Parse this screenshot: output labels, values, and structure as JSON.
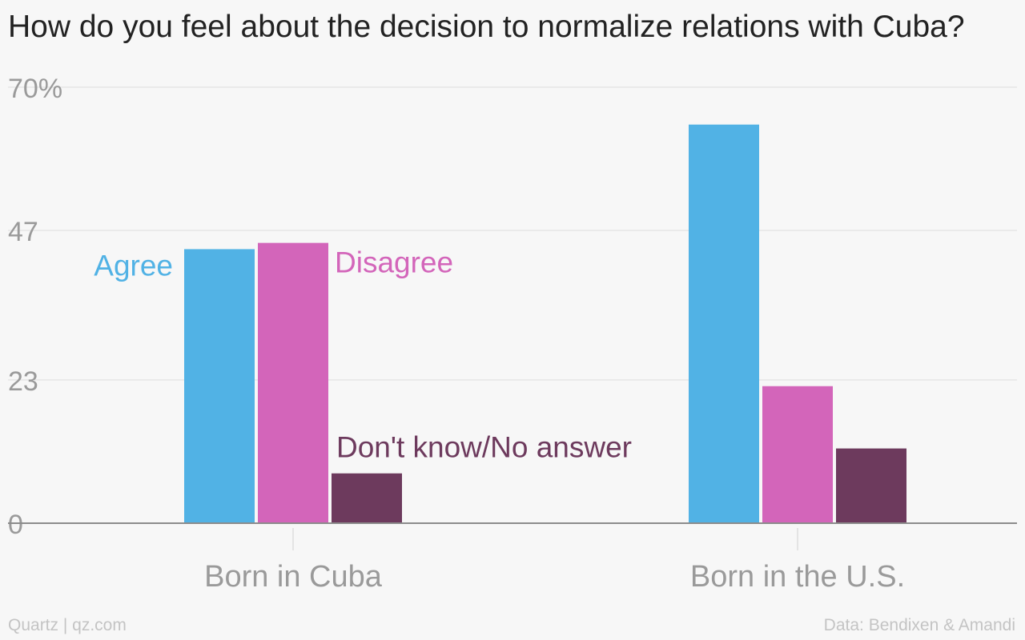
{
  "title": "How do you feel about the decision to normalize relations with Cuba?",
  "footer": {
    "source_left": "Quartz | qz.com",
    "source_right": "Data: Bendixen & Amandi"
  },
  "chart_data": {
    "type": "bar",
    "categories": [
      "Born in Cuba",
      "Born in the U.S."
    ],
    "series": [
      {
        "name": "Agree",
        "values": [
          44,
          64
        ],
        "color": "#51b2e5"
      },
      {
        "name": "Disagree",
        "values": [
          45,
          22
        ],
        "color": "#d365ba"
      },
      {
        "name": "Don't know/No answer",
        "values": [
          8,
          12
        ],
        "color": "#6d3a5d"
      }
    ],
    "yticks": [
      {
        "value": 0,
        "label": "0"
      },
      {
        "value": 23,
        "label": "23"
      },
      {
        "value": 47,
        "label": "47"
      },
      {
        "value": 70,
        "label": "70%"
      }
    ],
    "ylim": [
      0,
      70
    ],
    "grid": true,
    "legend": "inline labels next to first category bars"
  }
}
